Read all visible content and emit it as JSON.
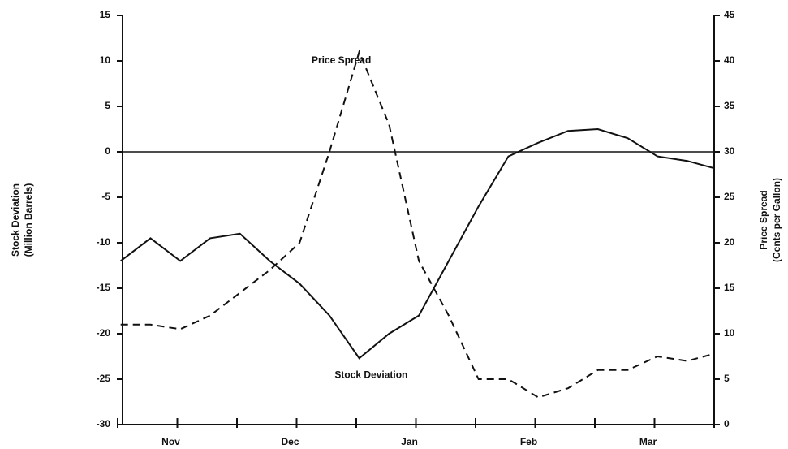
{
  "chart_data": {
    "type": "line",
    "y_label": [
      "Stock Deviation",
      "(Million Barrels)"
    ],
    "y2_label": [
      "Price Spread",
      "(Cents per Gallon)"
    ],
    "annotations": [
      {
        "text": "Price Spread",
        "x": 7.5,
        "y": 40,
        "axis": "y2"
      },
      {
        "text": "Stock Deviation",
        "x": 8.5,
        "y": -24.6
      }
    ],
    "x": [
      0.1,
      1.1,
      2.1,
      3.1,
      4.1,
      5.1,
      6.1,
      7.1,
      8.1,
      9.1,
      10.1,
      11.1,
      12.1,
      13.1,
      14.1,
      15.1,
      16.1,
      17.1,
      18.1,
      19.1,
      20
    ],
    "xlim": [
      0,
      20
    ],
    "xticks": [
      {
        "value": 0,
        "label": ""
      },
      {
        "value": 2,
        "label": "Nov"
      },
      {
        "value": 4,
        "label": ""
      },
      {
        "value": 6,
        "label": "Dec"
      },
      {
        "value": 8,
        "label": ""
      },
      {
        "value": 10,
        "label": "Jan"
      },
      {
        "value": 12,
        "label": ""
      },
      {
        "value": 14,
        "label": "Feb"
      },
      {
        "value": 16,
        "label": ""
      },
      {
        "value": 18,
        "label": "Mar"
      },
      {
        "value": 20,
        "label": ""
      }
    ],
    "ylim": [
      -30,
      15
    ],
    "yticks": [
      -30,
      -25,
      -20,
      -15,
      -10,
      -5,
      0,
      5,
      10,
      15
    ],
    "y2lim": [
      0,
      45
    ],
    "y2ticks": [
      0,
      5,
      10,
      15,
      20,
      25,
      30,
      35,
      40,
      45
    ],
    "zero_line": true,
    "series": [
      {
        "name": "Stock Deviation",
        "color": "#111",
        "dash": "none",
        "values": [
          -12,
          -9.5,
          -12,
          -9.5,
          -9,
          -12,
          -14.5,
          -18,
          -22.7,
          -20,
          -18,
          -12,
          -6,
          -0.5,
          1,
          2.3,
          2.5,
          1.5,
          -0.5,
          -1,
          -1.8
        ]
      },
      {
        "name": "Price Spread",
        "color": "#111",
        "dash": "9 6",
        "axis": "y2",
        "values": [
          11,
          11,
          10.5,
          12,
          14.5,
          17,
          20,
          30,
          41,
          33,
          18,
          12,
          5,
          5,
          3,
          4,
          6,
          6,
          7.5,
          7,
          7.8
        ]
      }
    ]
  }
}
